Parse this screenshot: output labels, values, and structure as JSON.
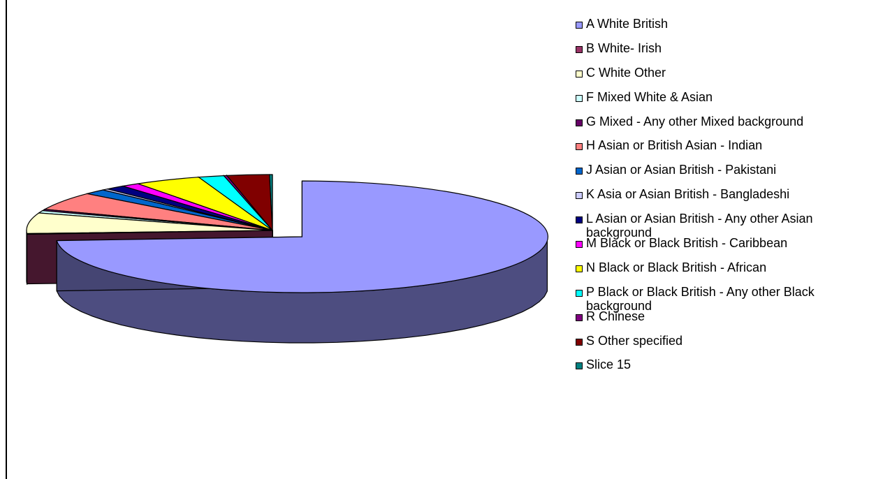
{
  "chart_data": {
    "type": "pie",
    "style": "3d-exploded",
    "legend_position": "right",
    "title": "",
    "categories": [
      "A White British",
      "B White- Irish",
      "C White Other",
      "F Mixed White & Asian",
      "G Mixed - Any other Mixed background",
      "H Asian or British Asian - Indian",
      "J Asian or Asian British -  Pakistani",
      "K Asia or Asian British - Bangladeshi",
      "L Asian or Asian British - Any other Asian background",
      "M Black or Black British - Caribbean",
      "N Black or Black British - African",
      "P Black or Black British - Any other Black background",
      "R Chinese",
      "S Other specified",
      "Slice 15"
    ],
    "values": [
      74.5,
      0.2,
      6.0,
      0.7,
      0.4,
      5.3,
      1.5,
      0.4,
      1.3,
      1.2,
      4.4,
      1.7,
      0.2,
      2.8,
      0.2
    ],
    "colors": [
      "#9999ff",
      "#993366",
      "#ffffcc",
      "#ccffff",
      "#660066",
      "#ff8080",
      "#0066cc",
      "#ccccff",
      "#000080",
      "#ff00ff",
      "#ffff00",
      "#00ffff",
      "#800080",
      "#800000",
      "#008080"
    ]
  }
}
